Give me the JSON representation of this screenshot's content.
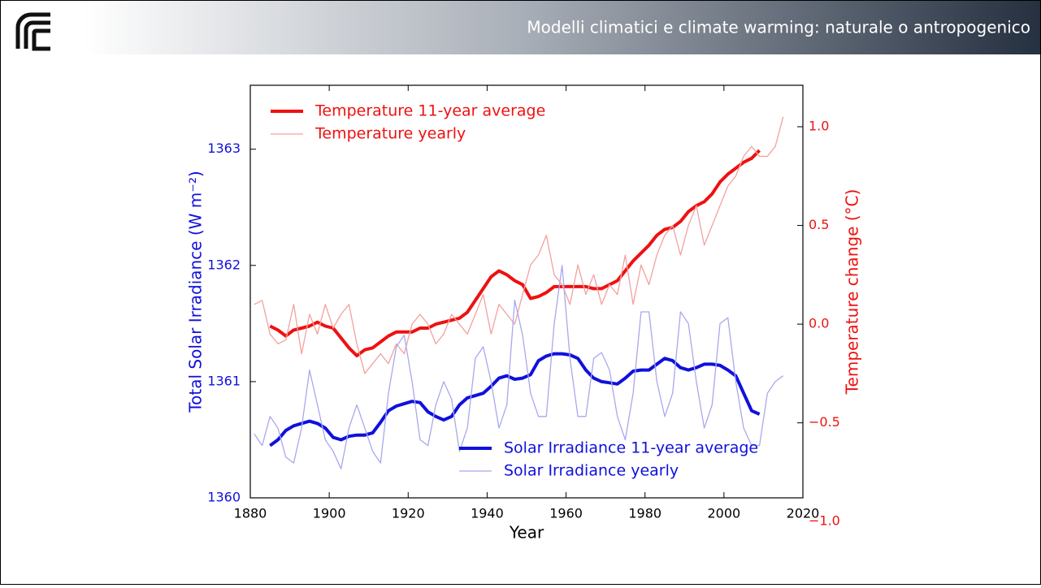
{
  "header": {
    "title": "Modelli climatici e climate warming: naturale o antropogenico"
  },
  "chart_data": {
    "type": "line",
    "x_label": "Year",
    "y_label": "Total Solar Irradiance (W m⁻²)",
    "y2_label": "Temperature change (°C)",
    "x": [
      1881,
      1883,
      1885,
      1887,
      1889,
      1891,
      1893,
      1895,
      1897,
      1899,
      1901,
      1903,
      1905,
      1907,
      1909,
      1911,
      1913,
      1915,
      1917,
      1919,
      1921,
      1923,
      1925,
      1927,
      1929,
      1931,
      1933,
      1935,
      1937,
      1939,
      1941,
      1943,
      1945,
      1947,
      1949,
      1951,
      1953,
      1955,
      1957,
      1959,
      1961,
      1963,
      1965,
      1967,
      1969,
      1971,
      1973,
      1975,
      1977,
      1979,
      1981,
      1983,
      1985,
      1987,
      1989,
      1991,
      1993,
      1995,
      1997,
      1999,
      2001,
      2003,
      2005,
      2007,
      2009,
      2011,
      2013,
      2015
    ],
    "xlim": [
      1880,
      2020
    ],
    "xticks": [
      1880,
      1900,
      1920,
      1940,
      1960,
      1980,
      2000,
      2020
    ],
    "ylim": [
      1360,
      1363.55
    ],
    "yticks": [
      1360,
      1361,
      1362,
      1363
    ],
    "y2lim": [
      -0.88,
      1.21
    ],
    "y2ticks": [
      {
        "value": -1.0,
        "label": "−1.0"
      },
      {
        "value": -0.5,
        "label": "−0.5"
      },
      {
        "value": 0.0,
        "label": "0.0"
      },
      {
        "value": 0.5,
        "label": "0.5"
      },
      {
        "value": 1.0,
        "label": "1.0"
      }
    ],
    "grid": false,
    "series": [
      {
        "name": "Temperature 11-year average",
        "color": "#ee1111",
        "width": 4,
        "axis": "y2",
        "legend": "upper left",
        "values": [
          null,
          null,
          -0.01,
          -0.03,
          -0.06,
          -0.03,
          -0.02,
          -0.01,
          0.01,
          -0.01,
          -0.02,
          -0.07,
          -0.12,
          -0.16,
          -0.13,
          -0.12,
          -0.09,
          -0.06,
          -0.04,
          -0.04,
          -0.04,
          -0.02,
          -0.02,
          0.0,
          0.01,
          0.02,
          0.03,
          0.06,
          0.12,
          0.18,
          0.24,
          0.27,
          0.25,
          0.22,
          0.2,
          0.13,
          0.14,
          0.16,
          0.19,
          0.19,
          0.19,
          0.19,
          0.19,
          0.18,
          0.18,
          0.2,
          0.22,
          0.27,
          0.32,
          0.36,
          0.4,
          0.45,
          0.48,
          0.49,
          0.52,
          0.57,
          0.6,
          0.62,
          0.66,
          0.72,
          0.76,
          0.79,
          0.82,
          0.84,
          0.88,
          null,
          null,
          null
        ]
      },
      {
        "name": "Temperature yearly",
        "color": "#f4a0a0",
        "width": 1.3,
        "axis": "y2",
        "legend": "upper left",
        "values": [
          0.1,
          0.12,
          -0.05,
          -0.1,
          -0.08,
          0.1,
          -0.15,
          0.05,
          -0.05,
          0.1,
          -0.02,
          0.05,
          0.1,
          -0.1,
          -0.25,
          -0.2,
          -0.15,
          -0.2,
          -0.1,
          -0.15,
          0.0,
          0.05,
          0.0,
          -0.1,
          -0.05,
          0.05,
          0.0,
          -0.05,
          0.05,
          0.15,
          -0.05,
          0.1,
          0.05,
          0.0,
          0.15,
          0.3,
          0.35,
          0.45,
          0.25,
          0.2,
          0.1,
          0.3,
          0.15,
          0.25,
          0.1,
          0.2,
          0.15,
          0.35,
          0.1,
          0.3,
          0.2,
          0.35,
          0.45,
          0.5,
          0.35,
          0.5,
          0.6,
          0.4,
          0.5,
          0.6,
          0.7,
          0.75,
          0.85,
          0.9,
          0.85,
          0.85,
          0.9,
          1.05
        ]
      },
      {
        "name": "Solar Irradiance 11-year average",
        "color": "#1010dd",
        "width": 4,
        "legend": "lower right",
        "values": [
          null,
          null,
          1360.45,
          1360.5,
          1360.58,
          1360.62,
          1360.64,
          1360.66,
          1360.64,
          1360.6,
          1360.52,
          1360.5,
          1360.53,
          1360.54,
          1360.54,
          1360.56,
          1360.65,
          1360.75,
          1360.79,
          1360.81,
          1360.83,
          1360.82,
          1360.74,
          1360.7,
          1360.67,
          1360.7,
          1360.8,
          1360.86,
          1360.88,
          1360.9,
          1360.96,
          1361.03,
          1361.05,
          1361.02,
          1361.03,
          1361.06,
          1361.18,
          1361.22,
          1361.24,
          1361.24,
          1361.23,
          1361.2,
          1361.1,
          1361.03,
          1361.0,
          1360.99,
          1360.98,
          1361.03,
          1361.09,
          1361.1,
          1361.1,
          1361.15,
          1361.2,
          1361.18,
          1361.12,
          1361.1,
          1361.12,
          1361.15,
          1361.15,
          1361.14,
          1361.1,
          1361.05,
          1360.9,
          1360.75,
          1360.72,
          null,
          null,
          null
        ]
      },
      {
        "name": "Solar Irradiance yearly",
        "color": "#a8a8ee",
        "width": 1.3,
        "legend": "lower right",
        "values": [
          1360.55,
          1360.45,
          1360.7,
          1360.6,
          1360.35,
          1360.3,
          1360.6,
          1361.1,
          1360.8,
          1360.5,
          1360.4,
          1360.25,
          1360.6,
          1360.8,
          1360.6,
          1360.4,
          1360.3,
          1360.9,
          1361.3,
          1361.4,
          1361.0,
          1360.5,
          1360.45,
          1360.8,
          1361.0,
          1360.85,
          1360.4,
          1360.6,
          1361.2,
          1361.3,
          1361.0,
          1360.6,
          1360.8,
          1361.7,
          1361.4,
          1360.9,
          1360.7,
          1360.7,
          1361.5,
          1362.0,
          1361.2,
          1360.7,
          1360.7,
          1361.2,
          1361.25,
          1361.1,
          1360.7,
          1360.5,
          1360.9,
          1361.6,
          1361.6,
          1361.0,
          1360.7,
          1360.9,
          1361.6,
          1361.5,
          1361.0,
          1360.6,
          1360.8,
          1361.5,
          1361.55,
          1361.0,
          1360.6,
          1360.45,
          1360.45,
          1360.9,
          1361.0,
          1361.05
        ]
      }
    ]
  }
}
